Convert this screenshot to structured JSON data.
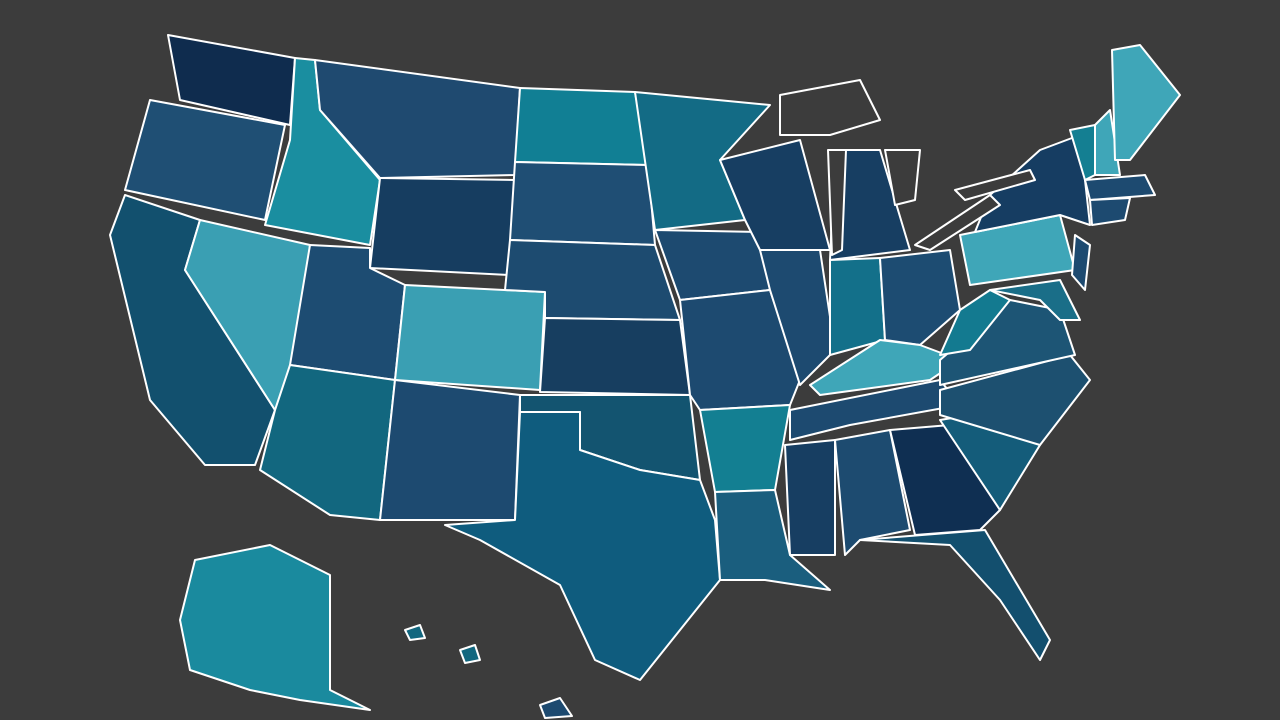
{
  "map": {
    "background": "#3c3c3c",
    "stroke": "#ffffff",
    "fills": [
      "#0f2c4e",
      "#1f4f74",
      "#12506e",
      "#3a9fb3",
      "#1a8ea0",
      "#1f4a70",
      "#163d60",
      "#1d4c72",
      "#3a9fb3",
      "#12677f",
      "#1d4a70",
      "#117f94",
      "#1f4e74",
      "#1d4b70",
      "#173e60",
      "#135470",
      "#0f5c7e",
      "#136b85",
      "#1d4a70",
      "#1d4a70",
      "#137f92",
      "#1a5e7e",
      "#173e62",
      "#1d4a70",
      "#173e62",
      "#13708a",
      "#1d4c72",
      "#3fa6b8",
      "#1d4a70",
      "#173e62",
      "#1d4b70",
      "#0f2f52",
      "#134f6e",
      "#145c7a",
      "#1d5070",
      "#1d5575",
      "#137a90",
      "#3fa6b8",
      "#163d62",
      "#1d4a70",
      "#1a6e88",
      "#147f92",
      "#3fa6b8",
      "#3fa6b8",
      "#1d4a70",
      "#1d4a70",
      "#1a8a9e",
      "#12677f",
      "#12677f",
      "#1d4a70"
    ]
  }
}
